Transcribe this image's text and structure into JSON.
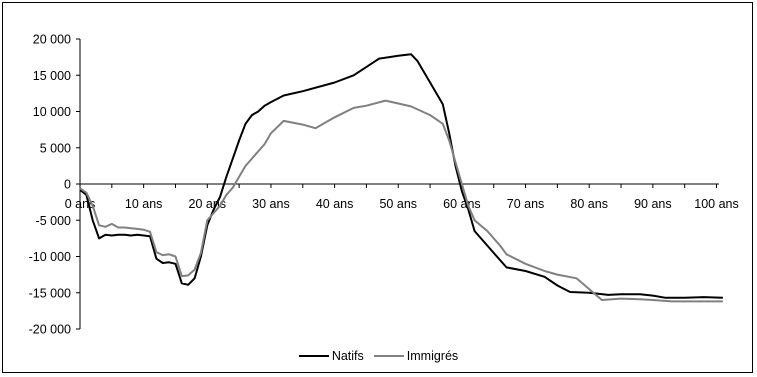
{
  "chart_data": {
    "type": "line",
    "title": "",
    "xlabel": "",
    "ylabel": "",
    "x_unit_label": "ans",
    "xlim": [
      0,
      100
    ],
    "ylim": [
      -20000,
      20000
    ],
    "x_ticks": [
      0,
      10,
      20,
      30,
      40,
      50,
      60,
      70,
      80,
      90,
      100
    ],
    "x_tick_labels": [
      "0 ans",
      "10 ans",
      "20 ans",
      "30 ans",
      "40 ans",
      "50 ans",
      "60 ans",
      "70 ans",
      "80 ans",
      "90 ans",
      "100 ans"
    ],
    "y_ticks": [
      -20000,
      -15000,
      -10000,
      -5000,
      0,
      5000,
      10000,
      15000,
      20000
    ],
    "y_tick_labels": [
      "-20 000",
      "-15 000",
      "-10 000",
      "-5 000",
      "0",
      "5 000",
      "10 000",
      "15 000",
      "20 000"
    ],
    "grid": false,
    "legend_position": "bottom",
    "series": [
      {
        "name": "Natifs",
        "color": "#000000",
        "points": [
          [
            0,
            -800
          ],
          [
            1,
            -1500
          ],
          [
            2,
            -5000
          ],
          [
            3,
            -7500
          ],
          [
            4,
            -7000
          ],
          [
            5,
            -7100
          ],
          [
            6,
            -7000
          ],
          [
            7,
            -7000
          ],
          [
            8,
            -7100
          ],
          [
            9,
            -7000
          ],
          [
            10,
            -7100
          ],
          [
            11,
            -7200
          ],
          [
            12,
            -10300
          ],
          [
            13,
            -10900
          ],
          [
            14,
            -10800
          ],
          [
            15,
            -11000
          ],
          [
            16,
            -13700
          ],
          [
            17,
            -13900
          ],
          [
            18,
            -13000
          ],
          [
            19,
            -10000
          ],
          [
            20,
            -5700
          ],
          [
            21,
            -3500
          ],
          [
            22,
            -1800
          ],
          [
            23,
            1000
          ],
          [
            24,
            3500
          ],
          [
            25,
            6000
          ],
          [
            26,
            8300
          ],
          [
            27,
            9500
          ],
          [
            28,
            10000
          ],
          [
            29,
            10800
          ],
          [
            30,
            11300
          ],
          [
            32,
            12200
          ],
          [
            35,
            12800
          ],
          [
            40,
            14000
          ],
          [
            43,
            15000
          ],
          [
            47,
            17300
          ],
          [
            50,
            17700
          ],
          [
            52,
            17900
          ],
          [
            53,
            17000
          ],
          [
            55,
            14000
          ],
          [
            57,
            11000
          ],
          [
            58,
            7000
          ],
          [
            59,
            2500
          ],
          [
            60,
            -1000
          ],
          [
            61,
            -3500
          ],
          [
            62,
            -6500
          ],
          [
            63,
            -7500
          ],
          [
            65,
            -9500
          ],
          [
            67,
            -11500
          ],
          [
            70,
            -12000
          ],
          [
            73,
            -12800
          ],
          [
            75,
            -14000
          ],
          [
            77,
            -14900
          ],
          [
            80,
            -15000
          ],
          [
            83,
            -15300
          ],
          [
            85,
            -15200
          ],
          [
            88,
            -15200
          ],
          [
            90,
            -15400
          ],
          [
            92,
            -15700
          ],
          [
            95,
            -15700
          ],
          [
            98,
            -15600
          ],
          [
            101,
            -15700
          ]
        ]
      },
      {
        "name": "Immigrés",
        "color": "#808080",
        "points": [
          [
            0,
            -600
          ],
          [
            1,
            -1200
          ],
          [
            2,
            -3000
          ],
          [
            3,
            -5700
          ],
          [
            4,
            -5900
          ],
          [
            5,
            -5500
          ],
          [
            6,
            -6000
          ],
          [
            7,
            -6000
          ],
          [
            8,
            -6100
          ],
          [
            9,
            -6200
          ],
          [
            10,
            -6300
          ],
          [
            11,
            -6600
          ],
          [
            12,
            -9400
          ],
          [
            13,
            -9800
          ],
          [
            14,
            -9700
          ],
          [
            15,
            -10000
          ],
          [
            16,
            -12700
          ],
          [
            17,
            -12600
          ],
          [
            18,
            -11800
          ],
          [
            19,
            -9500
          ],
          [
            20,
            -5000
          ],
          [
            21,
            -4000
          ],
          [
            22,
            -3000
          ],
          [
            23,
            -1500
          ],
          [
            24,
            -500
          ],
          [
            25,
            1000
          ],
          [
            26,
            2500
          ],
          [
            27,
            3500
          ],
          [
            28,
            4500
          ],
          [
            29,
            5500
          ],
          [
            30,
            7000
          ],
          [
            32,
            8700
          ],
          [
            35,
            8200
          ],
          [
            37,
            7700
          ],
          [
            40,
            9200
          ],
          [
            43,
            10500
          ],
          [
            45,
            10800
          ],
          [
            48,
            11500
          ],
          [
            50,
            11100
          ],
          [
            52,
            10700
          ],
          [
            55,
            9500
          ],
          [
            57,
            8300
          ],
          [
            58,
            6000
          ],
          [
            59,
            3000
          ],
          [
            60,
            0
          ],
          [
            61,
            -3000
          ],
          [
            62,
            -5000
          ],
          [
            64,
            -6500
          ],
          [
            66,
            -8500
          ],
          [
            67,
            -9700
          ],
          [
            70,
            -11000
          ],
          [
            73,
            -12000
          ],
          [
            75,
            -12500
          ],
          [
            78,
            -13000
          ],
          [
            80,
            -14500
          ],
          [
            82,
            -16000
          ],
          [
            85,
            -15800
          ],
          [
            88,
            -15900
          ],
          [
            90,
            -16000
          ],
          [
            93,
            -16200
          ],
          [
            95,
            -16200
          ],
          [
            98,
            -16200
          ],
          [
            101,
            -16200
          ]
        ]
      }
    ]
  }
}
